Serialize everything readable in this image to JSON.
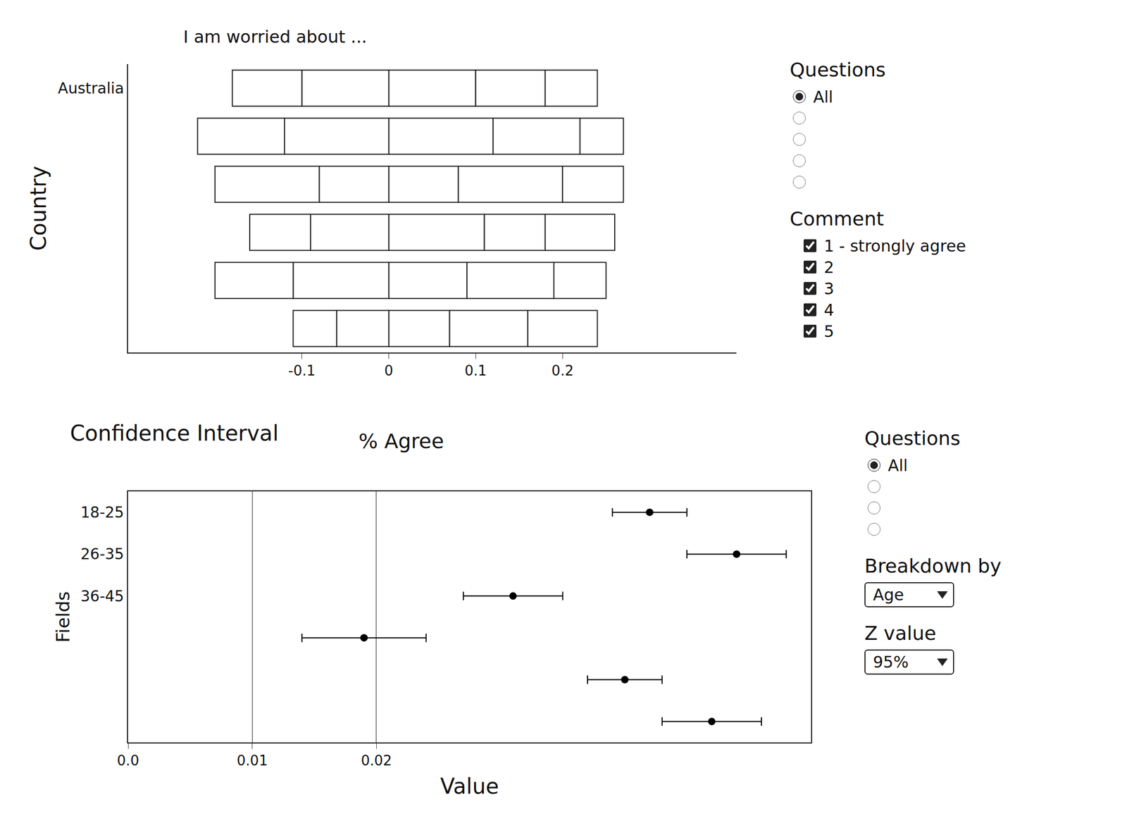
{
  "chart_data": [
    {
      "type": "bar",
      "orientation": "horizontal",
      "stacked": true,
      "title": "I am worried about ...",
      "y_label": "Country",
      "categories": [
        "Australia",
        null,
        null,
        null,
        null,
        null
      ],
      "xlim": [
        -0.3,
        0.4
      ],
      "xticks": [
        -0.1,
        0,
        0.1,
        0.2
      ],
      "grid": false,
      "series": [
        {
          "name": "1 - strongly agree",
          "color": "#ffffff",
          "values": [
            0.1,
            0.12,
            0.08,
            0.11,
            0.09,
            0.07
          ]
        },
        {
          "name": "2",
          "color": "#ffffff",
          "values": [
            0.08,
            0.1,
            0.12,
            0.07,
            0.1,
            0.09
          ]
        },
        {
          "name": "3",
          "color": "#ffffff",
          "values": [
            0.06,
            0.05,
            0.07,
            0.08,
            0.06,
            0.08
          ]
        },
        {
          "name": "4",
          "color": "#ffffff",
          "values": [
            -0.1,
            -0.12,
            -0.08,
            -0.09,
            -0.11,
            -0.06
          ]
        },
        {
          "name": "5",
          "color": "#ffffff",
          "values": [
            -0.08,
            -0.1,
            -0.12,
            -0.07,
            -0.09,
            -0.05
          ]
        }
      ]
    },
    {
      "type": "scatter",
      "title": "Confidence Interval",
      "subtitle": "% Agree",
      "y_label": "Fields",
      "x_label": "Value",
      "categories": [
        "18-25",
        "26-35",
        "36-45",
        null,
        null,
        null
      ],
      "values": [
        0.042,
        0.049,
        0.031,
        0.019,
        0.04,
        0.047
      ],
      "errors": [
        0.003,
        0.004,
        0.004,
        0.005,
        0.003,
        0.004
      ],
      "xlim": [
        0,
        0.055
      ],
      "xticks": [
        {
          "value": 0,
          "label": "0.0"
        },
        0.01,
        0.02
      ],
      "grid": true,
      "color": "#000000",
      "marker": "circle"
    }
  ],
  "controls": {
    "top": [
      {
        "title": "Questions",
        "kind": "radio",
        "options": [
          "All",
          null,
          null,
          null,
          null
        ]
      },
      {
        "title": "Comment",
        "kind": "legend"
      }
    ],
    "bottom": [
      {
        "title": "Questions",
        "kind": "radio",
        "options": [
          "All",
          null,
          null,
          null
        ]
      },
      {
        "title": "Breakdown by",
        "kind": "dropdown",
        "options": [
          "Age"
        ]
      },
      {
        "title": "Z value",
        "kind": "dropdown",
        "options": [
          "95%"
        ]
      }
    ]
  }
}
